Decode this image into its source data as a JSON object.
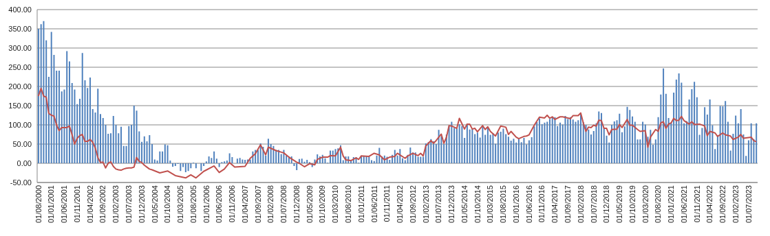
{
  "chart_data": {
    "type": "bar",
    "categories": [
      "01/08/2000",
      null,
      null,
      null,
      null,
      "01/01/2001",
      null,
      null,
      null,
      null,
      "01/06/2001",
      null,
      null,
      null,
      null,
      "01/11/2001",
      null,
      null,
      null,
      null,
      "01/04/2002",
      null,
      null,
      null,
      null,
      "01/09/2002",
      null,
      null,
      null,
      null,
      "01/02/2003",
      null,
      null,
      null,
      null,
      "01/07/2003",
      null,
      null,
      null,
      null,
      "01/12/2003",
      null,
      null,
      null,
      null,
      "01/05/2004",
      null,
      null,
      null,
      null,
      "01/10/2004",
      null,
      null,
      null,
      null,
      "01/03/2005",
      null,
      null,
      null,
      null,
      "01/08/2005",
      null,
      null,
      null,
      null,
      "01/01/2006",
      null,
      null,
      null,
      null,
      "01/06/2006",
      null,
      null,
      null,
      null,
      "01/11/2006",
      null,
      null,
      null,
      null,
      "01/04/2007",
      null,
      null,
      null,
      null,
      "01/09/2007",
      null,
      null,
      null,
      null,
      "01/02/2008",
      null,
      null,
      null,
      null,
      "01/07/2008",
      null,
      null,
      null,
      null,
      "01/12/2008",
      null,
      null,
      null,
      null,
      "01/05/2009",
      null,
      null,
      null,
      null,
      "01/10/2009",
      null,
      null,
      null,
      null,
      "01/03/2010",
      null,
      null,
      null,
      null,
      "01/08/2010",
      null,
      null,
      null,
      null,
      "01/01/2011",
      null,
      null,
      null,
      null,
      "01/06/2011",
      null,
      null,
      null,
      null,
      "01/11/2011",
      null,
      null,
      null,
      null,
      "01/04/2012",
      null,
      null,
      null,
      null,
      "01/09/2012",
      null,
      null,
      null,
      null,
      "01/02/2013",
      null,
      null,
      null,
      null,
      "01/07/2013",
      null,
      null,
      null,
      null,
      "01/12/2013",
      null,
      null,
      null,
      null,
      "01/05/2014",
      null,
      null,
      null,
      null,
      "01/10/2014",
      null,
      null,
      null,
      null,
      "01/03/2015",
      null,
      null,
      null,
      null,
      "01/08/2015",
      null,
      null,
      null,
      null,
      "01/01/2016",
      null,
      null,
      null,
      null,
      "01/06/2016",
      null,
      null,
      null,
      null,
      "01/11/2016",
      null,
      null,
      null,
      null,
      "01/04/2017",
      null,
      null,
      null,
      null,
      "01/09/2017",
      null,
      null,
      null,
      null,
      "01/02/2018",
      null,
      null,
      null,
      null,
      "01/07/2018",
      null,
      null,
      null,
      null,
      "01/12/2018",
      null,
      null,
      null,
      null,
      "01/05/2019",
      null,
      null,
      null,
      null,
      "01/10/2019",
      null,
      null,
      null,
      null,
      "01/03/2020",
      null,
      null,
      null,
      null,
      "01/08/2020",
      null,
      null,
      null,
      null,
      "01/01/2021",
      null,
      null,
      null,
      null,
      "01/06/2021",
      null,
      null,
      null,
      null,
      "01/11/2021",
      null,
      null,
      null,
      null,
      "01/04/2022",
      null,
      null,
      null,
      null,
      "01/09/2022",
      null,
      null,
      null,
      null,
      "01/02/2023",
      null,
      null,
      null,
      null,
      "01/07/2023",
      null,
      null,
      null
    ],
    "series": [
      {
        "color": "#4f81bd",
        "values": [
          350,
          362,
          370,
          320,
          225,
          342,
          282,
          241,
          241,
          187,
          192,
          292,
          265,
          209,
          192,
          154,
          168,
          287,
          216,
          196,
          223,
          141,
          132,
          194,
          128,
          118,
          100,
          77,
          78,
          123,
          100,
          78,
          95,
          45,
          45,
          97,
          100,
          150,
          137,
          83,
          56,
          70,
          57,
          73,
          50,
          10,
          7,
          31,
          31,
          49,
          47,
          7,
          -9,
          -7,
          -2,
          -20,
          -10,
          -23,
          -20,
          -13,
          2,
          -13,
          0,
          -20,
          -7,
          5,
          18,
          14,
          31,
          12,
          -10,
          3,
          5,
          7,
          26,
          16,
          0,
          12,
          14,
          10,
          9,
          10,
          10,
          31,
          35,
          35,
          52,
          43,
          20,
          64,
          50,
          45,
          35,
          35,
          24,
          35,
          20,
          18,
          18,
          -7,
          -18,
          11,
          12,
          4,
          9,
          3,
          -10,
          10,
          23,
          18,
          22,
          13,
          2,
          33,
          33,
          37,
          39,
          47,
          8,
          18,
          18,
          8,
          16,
          16,
          2,
          20,
          19,
          18,
          18,
          8,
          6,
          20,
          40,
          18,
          20,
          17,
          9,
          22,
          35,
          20,
          37,
          13,
          8,
          22,
          41,
          28,
          28,
          17,
          17,
          17,
          52,
          55,
          63,
          57,
          50,
          87,
          70,
          50,
          75,
          97,
          108,
          92,
          90,
          102,
          97,
          66,
          103,
          88,
          90,
          76,
          80,
          67,
          95,
          74,
          93,
          74,
          78,
          51,
          80,
          82,
          90,
          76,
          69,
          59,
          64,
          54,
          63,
          55,
          66,
          49,
          60,
          68,
          96,
          107,
          117,
          102,
          106,
          108,
          115,
          120,
          120,
          97,
          106,
          101,
          123,
          115,
          120,
          114,
          108,
          112,
          130,
          107,
          100,
          88,
          75,
          84,
          104,
          135,
          131,
          93,
          72,
          54,
          100,
          109,
          112,
          129,
          81,
          96,
          147,
          139,
          122,
          108,
          62,
          62,
          108,
          101,
          69,
          87,
          48,
          62,
          120,
          179,
          247,
          181,
          118,
          106,
          184,
          218,
          234,
          210,
          104,
          110,
          166,
          193,
          212,
          172,
          74,
          92,
          146,
          127,
          166,
          99,
          37,
          73,
          149,
          148,
          162,
          108,
          33,
          77,
          124,
          104,
          141,
          75,
          19,
          60,
          104,
          63,
          104
        ]
      },
      {
        "type": "line",
        "color": "#c0504d",
        "values": [
          175,
          195,
          175,
          172,
          130,
          125,
          123,
          100,
          85,
          93,
          93,
          93,
          97,
          75,
          50,
          65,
          72,
          75,
          57,
          57,
          62,
          55,
          40,
          15,
          2,
          3,
          -12,
          0,
          4,
          -8,
          -15,
          -17,
          -18,
          -15,
          -13,
          -12,
          -12,
          -10,
          15,
          5,
          2,
          -5,
          -10,
          -15,
          -17,
          null,
          null,
          -25,
          null,
          null,
          -20,
          null,
          null,
          -32,
          null,
          null,
          null,
          -38,
          null,
          -30,
          null,
          -38,
          null,
          null,
          -21,
          null,
          null,
          null,
          -7,
          null,
          -24,
          null,
          -15,
          null,
          2,
          null,
          -10,
          null,
          null,
          null,
          -8,
          null,
          13,
          null,
          25,
          null,
          48,
          null,
          22,
          42,
          null,
          null,
          33,
          null,
          null,
          27,
          null,
          16,
          null,
          null,
          3,
          0,
          null,
          -9,
          null,
          -1,
          null,
          -4,
          10,
          null,
          16,
          null,
          16,
          20,
          null,
          19,
          null,
          42,
          19,
          9,
          null,
          7,
          null,
          14,
          10,
          19,
          null,
          null,
          18,
          null,
          26,
          null,
          22,
          null,
          9,
          null,
          16,
          null,
          18,
          26,
          null,
          null,
          13,
          19,
          null,
          26,
          null,
          20,
          26,
          19,
          45,
          null,
          59,
          52,
          59,
          null,
          76,
          52,
          68,
          98,
          97,
          null,
          91,
          117,
          null,
          89,
          102,
          102,
          89,
          91,
          82,
          null,
          98,
          88,
          95,
          83,
          null,
          71,
          null,
          97,
          null,
          94,
          75,
          83,
          null,
          68,
          64,
          null,
          70,
          71,
          74,
          null,
          99,
          null,
          120,
          null,
          118,
          125,
          117,
          121,
          114,
          null,
          121,
          121,
          null,
          118,
          116,
          124,
          null,
          124,
          131,
          105,
          83,
          94,
          93,
          99,
          97,
          112,
          111,
          91,
          91,
          74,
          88,
          null,
          89,
          101,
          93,
          null,
          114,
          99,
          99,
          null,
          88,
          83,
          null,
          85,
          42,
          68,
          null,
          88,
          83,
          105,
          108,
          91,
          102,
          105,
          117,
          111,
          112,
          122,
          111,
          null,
          102,
          108,
          101,
          null,
          102,
          null,
          97,
          72,
          83,
          null,
          79,
          70,
          null,
          79,
          74,
          null,
          71,
          62,
          null,
          68,
          75,
          65,
          null,
          null,
          68,
          59,
          56
        ]
      }
    ],
    "ylim": [
      -50,
      400
    ],
    "yticks": [
      {
        "value": -50,
        "label": "-50.00"
      },
      {
        "value": 0,
        "label": "0.00"
      },
      {
        "value": 50,
        "label": "50.00"
      },
      {
        "value": 100,
        "label": "100.00"
      },
      {
        "value": 150,
        "label": "150.00"
      },
      {
        "value": 200,
        "label": "200.00"
      },
      {
        "value": 250,
        "label": "250.00"
      },
      {
        "value": 300,
        "label": "300.00"
      },
      {
        "value": 350,
        "label": "350.00"
      },
      {
        "value": 400,
        "label": "400.00"
      }
    ],
    "grid": "y",
    "marker": "none",
    "line_style": "solid"
  }
}
